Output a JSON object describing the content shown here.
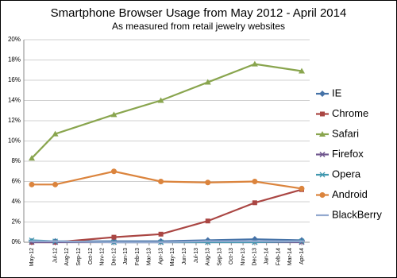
{
  "chart_data": {
    "type": "line",
    "title": "Smartphone Browser Usage from May 2012 - April 2014",
    "subtitle": "As measured from retail jewelry websites",
    "x": [
      0,
      2,
      7,
      11,
      15,
      19,
      23
    ],
    "xlim": [
      0,
      23
    ],
    "xticks": [
      {
        "value": 0,
        "label": "May-12"
      },
      {
        "value": 2,
        "label": "Jul-12"
      },
      {
        "value": 3,
        "label": "Aug-12"
      },
      {
        "value": 4,
        "label": "Sep-12"
      },
      {
        "value": 5,
        "label": "Oct-12"
      },
      {
        "value": 6,
        "label": "Nov-12"
      },
      {
        "value": 7,
        "label": "Dec-12"
      },
      {
        "value": 8,
        "label": "Jan-13"
      },
      {
        "value": 9,
        "label": "Feb-13"
      },
      {
        "value": 10,
        "label": "Mar-13"
      },
      {
        "value": 11,
        "label": "Apr-13"
      },
      {
        "value": 12,
        "label": "May-13"
      },
      {
        "value": 13,
        "label": "Jun-13"
      },
      {
        "value": 14,
        "label": "Jul-13"
      },
      {
        "value": 15,
        "label": "Aug-13"
      },
      {
        "value": 16,
        "label": "Sep-13"
      },
      {
        "value": 17,
        "label": "Oct-13"
      },
      {
        "value": 18,
        "label": "Nov-13"
      },
      {
        "value": 19,
        "label": "Dec-13"
      },
      {
        "value": 20,
        "label": "Jan-14"
      },
      {
        "value": 21,
        "label": "Feb-14"
      },
      {
        "value": 22,
        "label": "Mar-14"
      },
      {
        "value": 23,
        "label": "Apr-14"
      }
    ],
    "ylim": [
      0,
      20
    ],
    "yticks": [
      {
        "value": 0,
        "label": "0%"
      },
      {
        "value": 2,
        "label": "2%"
      },
      {
        "value": 4,
        "label": "4%"
      },
      {
        "value": 6,
        "label": "6%"
      },
      {
        "value": 8,
        "label": "8%"
      },
      {
        "value": 10,
        "label": "10%"
      },
      {
        "value": 12,
        "label": "12%"
      },
      {
        "value": 14,
        "label": "14%"
      },
      {
        "value": 16,
        "label": "16%"
      },
      {
        "value": 18,
        "label": "18%"
      },
      {
        "value": 20,
        "label": "20%"
      }
    ],
    "grid": true,
    "legend": "right",
    "series": [
      {
        "name": "IE",
        "color": "#4572a7",
        "marker": "diamond",
        "values": [
          0.1,
          0.1,
          0.1,
          0.1,
          0.2,
          0.3,
          0.2
        ]
      },
      {
        "name": "Chrome",
        "color": "#aa4643",
        "marker": "square",
        "values": [
          0,
          0,
          0.5,
          0.8,
          2.1,
          3.9,
          5.2
        ]
      },
      {
        "name": "Safari",
        "color": "#89a54e",
        "marker": "triangle",
        "values": [
          8.3,
          10.7,
          12.6,
          14.0,
          15.8,
          17.6,
          16.9
        ]
      },
      {
        "name": "Firefox",
        "color": "#71588f",
        "marker": "x",
        "values": [
          0,
          0,
          0,
          0,
          0,
          0,
          0
        ]
      },
      {
        "name": "Opera",
        "color": "#4198af",
        "marker": "star",
        "values": [
          0.2,
          0.1,
          0,
          0,
          0,
          0,
          0.1
        ]
      },
      {
        "name": "Android",
        "color": "#db843d",
        "marker": "circle",
        "values": [
          5.7,
          5.7,
          7.0,
          6.0,
          5.9,
          6.0,
          5.3
        ]
      },
      {
        "name": "BlackBerry",
        "color": "#93a9cf",
        "marker": "dash",
        "values": [
          0.1,
          0.1,
          0,
          0,
          0.1,
          0.1,
          0.1
        ]
      }
    ]
  }
}
